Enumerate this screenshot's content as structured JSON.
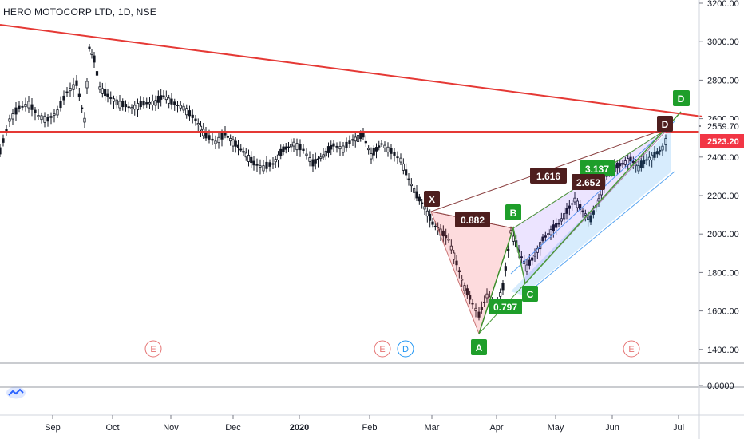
{
  "header": {
    "title": "HERO MOTOCORP LTD, 1D, NSE"
  },
  "price_axis": {
    "ticks": [
      "3200.00",
      "3000.00",
      "2800.00",
      "2600.00",
      "2400.00",
      "2200.00",
      "2000.00",
      "1800.00",
      "1600.00",
      "1400.00"
    ],
    "badges": {
      "top": "2559.70",
      "last": "2523.20"
    },
    "sub_panel_tick": "0.0000"
  },
  "time_axis": {
    "ticks": [
      "Sep",
      "Oct",
      "Nov",
      "Dec",
      "2020",
      "Feb",
      "Mar",
      "Apr",
      "May",
      "Jun",
      "Jul"
    ]
  },
  "pattern": {
    "point_labels": {
      "X": "X",
      "A": "A",
      "B": "B",
      "C": "C",
      "D": "D"
    },
    "ratios": {
      "xb": "0.882",
      "ac": "0.797",
      "xd": "1.616",
      "bd1": "2.652",
      "bd2": "3.137"
    }
  },
  "events": {
    "earnings": "E",
    "dividend": "D"
  },
  "colors": {
    "up": "#131722",
    "down": "#131722",
    "resistance": "#e53935",
    "last_price": "#f23645",
    "pattern_fill": "rgba(242,54,69,0.15)",
    "pattern_fill2": "rgba(101,31,255,0.12)",
    "channel": "rgba(33,150,243,0.25)",
    "green_label": "#089981",
    "dark_label": "#4e1e1e"
  },
  "icons": [
    "tradingview-logo-icon"
  ]
}
